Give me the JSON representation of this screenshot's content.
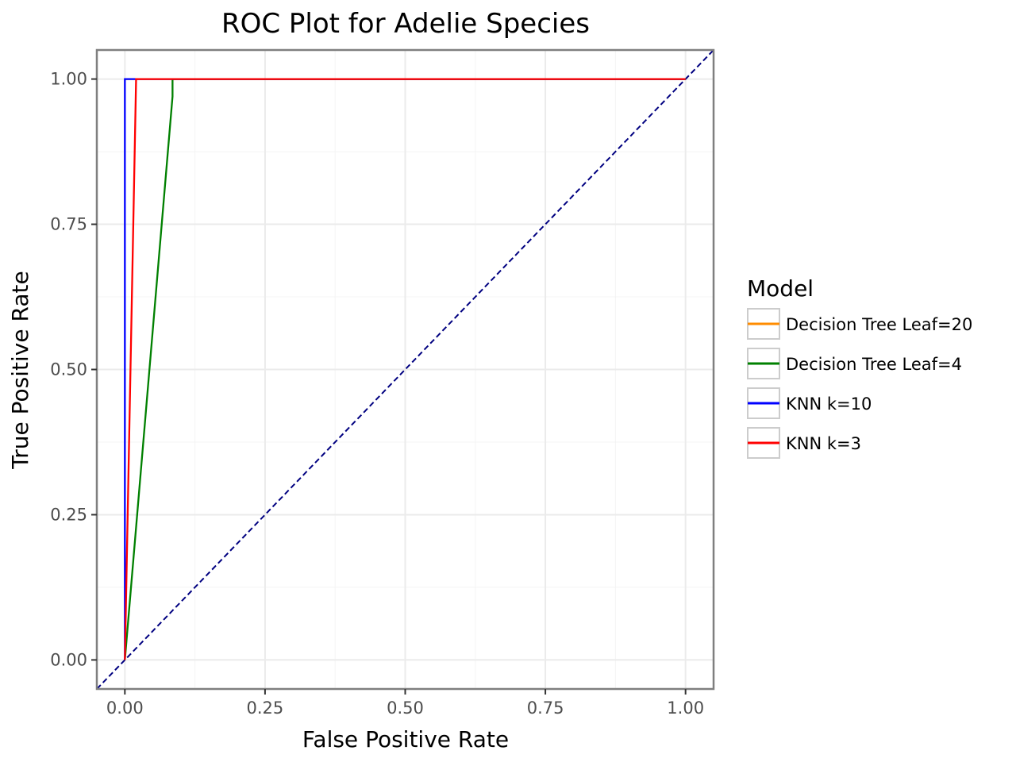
{
  "chart_data": {
    "type": "line",
    "title": "ROC Plot for Adelie Species",
    "xlabel": "False Positive Rate",
    "ylabel": "True Positive Rate",
    "xlim": [
      -0.05,
      1.05
    ],
    "ylim": [
      -0.05,
      1.05
    ],
    "x_ticks": [
      0,
      0.25,
      0.5,
      0.75,
      1
    ],
    "x_tick_labels": [
      "0.00",
      "0.25",
      "0.50",
      "0.75",
      "1.00"
    ],
    "y_ticks": [
      0,
      0.25,
      0.5,
      0.75,
      1
    ],
    "y_tick_labels": [
      "0.00",
      "0.25",
      "0.50",
      "0.75",
      "1.00"
    ],
    "grid": true,
    "legend": {
      "title": "Model",
      "placement": "right"
    },
    "series": [
      {
        "name": "Decision Tree Leaf=20",
        "color": "#ff8c00",
        "x": [
          0,
          1
        ],
        "y": [
          1,
          1
        ]
      },
      {
        "name": "Decision Tree Leaf=4",
        "color": "#008000",
        "x": [
          0,
          0.085,
          0.085,
          1
        ],
        "y": [
          0,
          0.97,
          1,
          1
        ]
      },
      {
        "name": "KNN k=10",
        "color": "#0000ff",
        "x": [
          0,
          0,
          0.02,
          1
        ],
        "y": [
          0,
          1,
          1,
          1
        ]
      },
      {
        "name": "KNN k=3",
        "color": "#ff0000",
        "x": [
          0,
          0.02,
          1
        ],
        "y": [
          0,
          1,
          1
        ]
      }
    ],
    "reference_line": {
      "style": "dashed",
      "color": "#000080",
      "x": [
        -0.05,
        1.05
      ],
      "y": [
        -0.05,
        1.05
      ]
    }
  }
}
